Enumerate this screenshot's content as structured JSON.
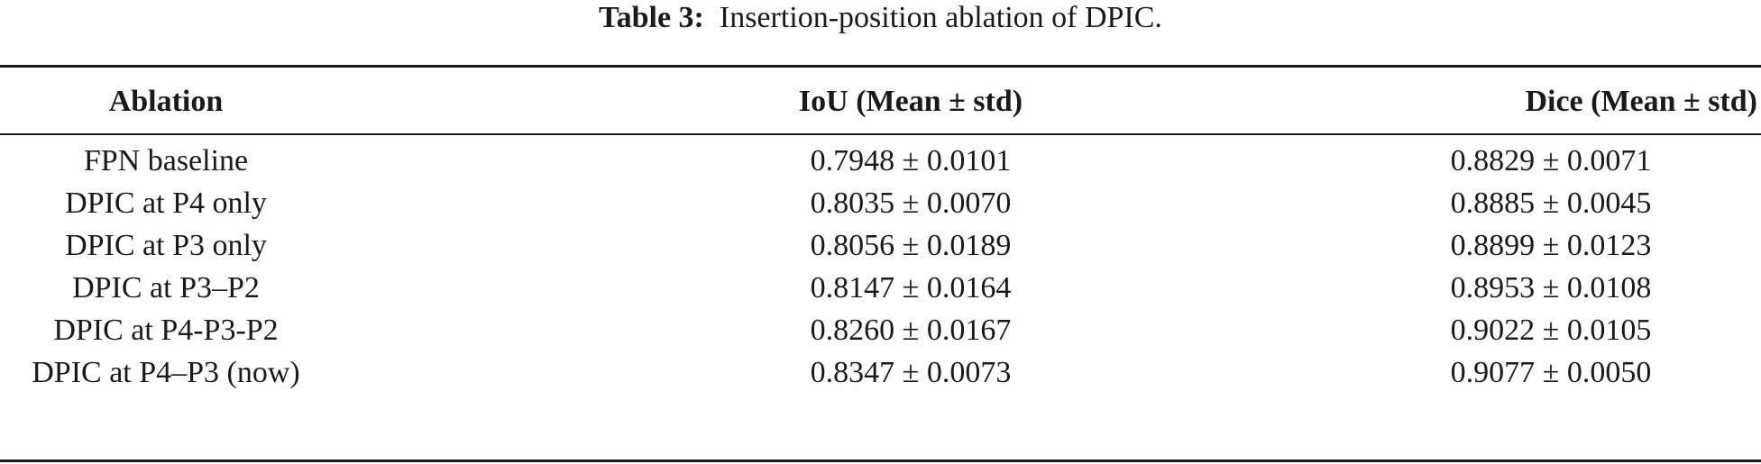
{
  "caption": {
    "label": "Table 3:",
    "text": "Insertion-position ablation of DPIC."
  },
  "table": {
    "headers": [
      "Ablation",
      "IoU (Mean ± std)",
      "Dice (Mean ± std)"
    ],
    "rows": [
      [
        "FPN baseline",
        "0.7948 ± 0.0101",
        "0.8829 ± 0.0071"
      ],
      [
        "DPIC at P4 only",
        "0.8035 ± 0.0070",
        "0.8885 ± 0.0045"
      ],
      [
        "DPIC at P3 only",
        "0.8056 ± 0.0189",
        "0.8899 ± 0.0123"
      ],
      [
        "DPIC at P3–P2",
        "0.8147 ± 0.0164",
        "0.8953 ± 0.0108"
      ],
      [
        "DPIC at P4-P3-P2",
        "0.8260 ± 0.0167",
        "0.9022 ± 0.0105"
      ],
      [
        "DPIC at P4–P3 (now)",
        "0.8347 ± 0.0073",
        "0.9077 ± 0.0050"
      ]
    ]
  }
}
